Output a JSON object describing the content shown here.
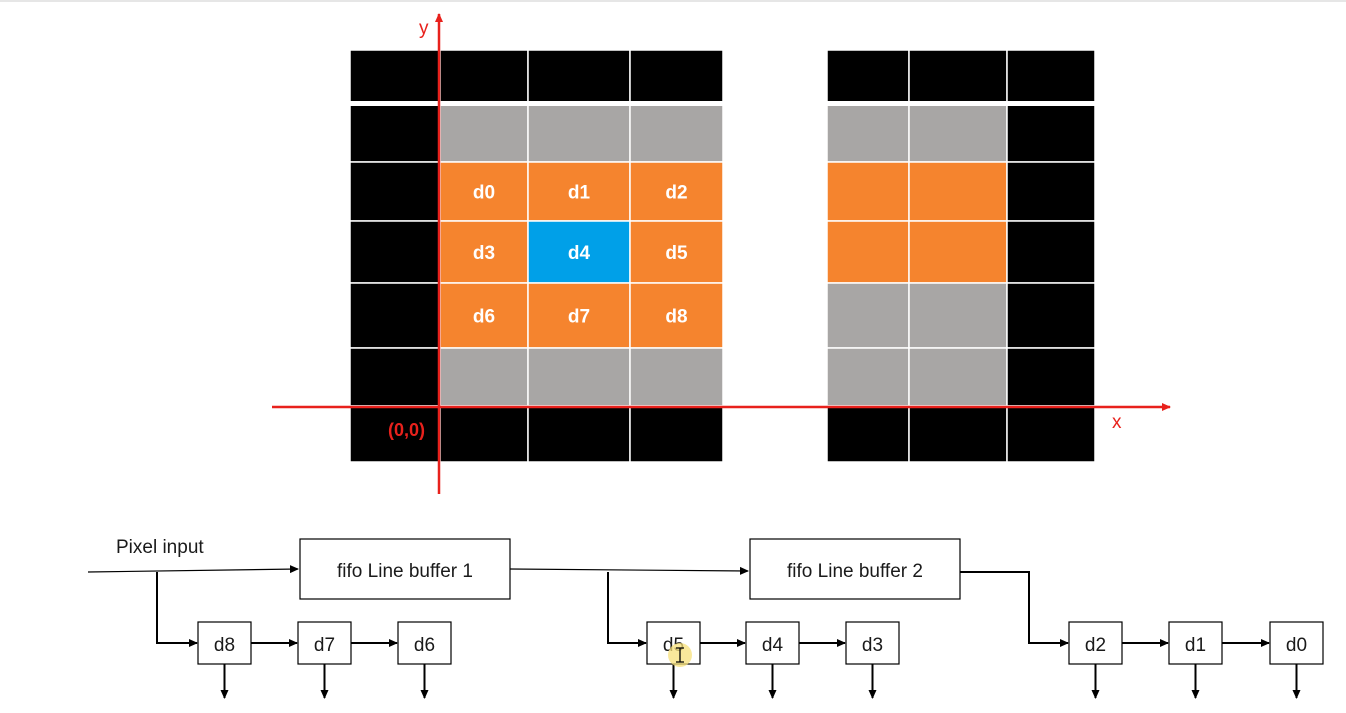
{
  "grid": {
    "rows": [
      [
        "black",
        "black",
        "black",
        "black",
        "black",
        "black",
        "black"
      ],
      [
        "black",
        "gray",
        "gray",
        "gray",
        "gray",
        "gray",
        "black"
      ],
      [
        "black",
        "orange",
        "orange",
        "orange",
        "orange",
        "orange",
        "black"
      ],
      [
        "black",
        "orange",
        "blue",
        "orange",
        "orange",
        "orange",
        "black"
      ],
      [
        "black",
        "orange",
        "orange",
        "orange",
        "gray",
        "gray",
        "black"
      ],
      [
        "black",
        "gray",
        "gray",
        "gray",
        "gray",
        "gray",
        "black"
      ],
      [
        "black",
        "black",
        "black",
        "black",
        "black",
        "black",
        "black"
      ]
    ],
    "labels": [
      {
        "row": 2,
        "col": 1,
        "text": "d0"
      },
      {
        "row": 2,
        "col": 2,
        "text": "d1"
      },
      {
        "row": 2,
        "col": 3,
        "text": "d2"
      },
      {
        "row": 3,
        "col": 1,
        "text": "d3"
      },
      {
        "row": 3,
        "col": 2,
        "text": "d4"
      },
      {
        "row": 3,
        "col": 3,
        "text": "d5"
      },
      {
        "row": 4,
        "col": 1,
        "text": "d6"
      },
      {
        "row": 4,
        "col": 2,
        "text": "d7"
      },
      {
        "row": 4,
        "col": 3,
        "text": "d8"
      }
    ]
  },
  "colors": {
    "black": "#000000",
    "gray": "#a8a6a5",
    "orange": "#f5842e",
    "blue": "#00a0e8",
    "axis": "#e8211c",
    "line": "#000000",
    "cursor": "#f7e07a"
  },
  "axes": {
    "x_label": "x",
    "y_label": "y",
    "origin_label": "(0,0)"
  },
  "pipeline": {
    "input_label": "Pixel input",
    "buffers": [
      "fifo Line buffer 1",
      "fifo Line buffer 2"
    ],
    "registers": [
      "d8",
      "d7",
      "d6",
      "d5",
      "d4",
      "d3",
      "d2",
      "d1",
      "d0"
    ]
  }
}
